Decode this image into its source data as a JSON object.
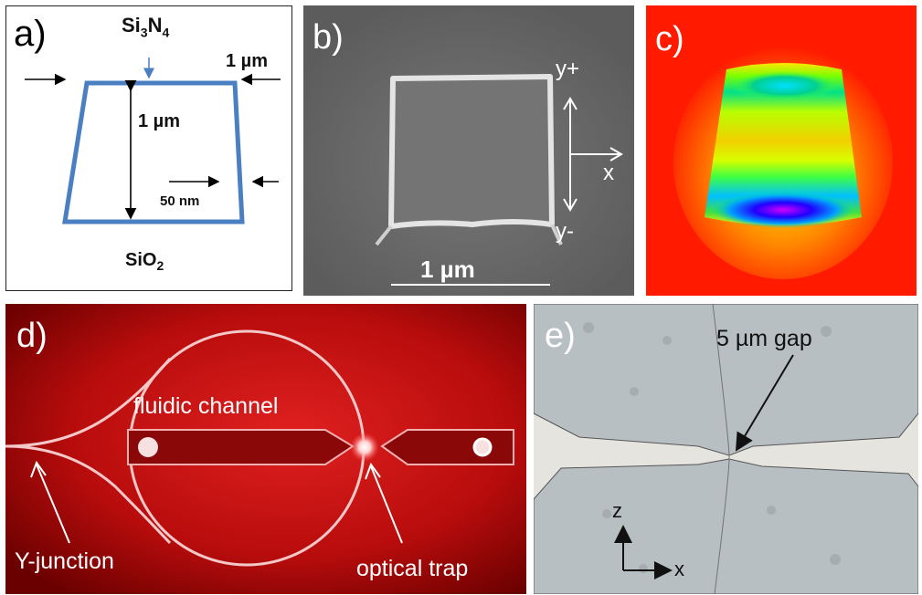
{
  "panels": {
    "a": {
      "label": "a)",
      "material_top": "Si",
      "material_top_sub1": "3",
      "material_top_mid": "N",
      "material_top_sub2": "4",
      "dim_width": "1 µm",
      "dim_height": "1 µm",
      "dim_offset": "50 nm",
      "material_bottom": "SiO",
      "material_bottom_sub": "2",
      "outline_color": "#4a7fc1"
    },
    "b": {
      "label": "b)",
      "axis_y_plus": "y+",
      "axis_x": "x",
      "axis_y_minus": "y-",
      "scale_bar": "1 µm"
    },
    "c": {
      "label": "c)"
    },
    "d": {
      "label": "d)",
      "fluidic_channel": "fluidic channel",
      "y_junction": "Y-junction",
      "optical_trap": "optical trap"
    },
    "e": {
      "label": "e)",
      "gap_label": "5 µm gap",
      "axis_z": "z",
      "axis_x": "x"
    }
  }
}
